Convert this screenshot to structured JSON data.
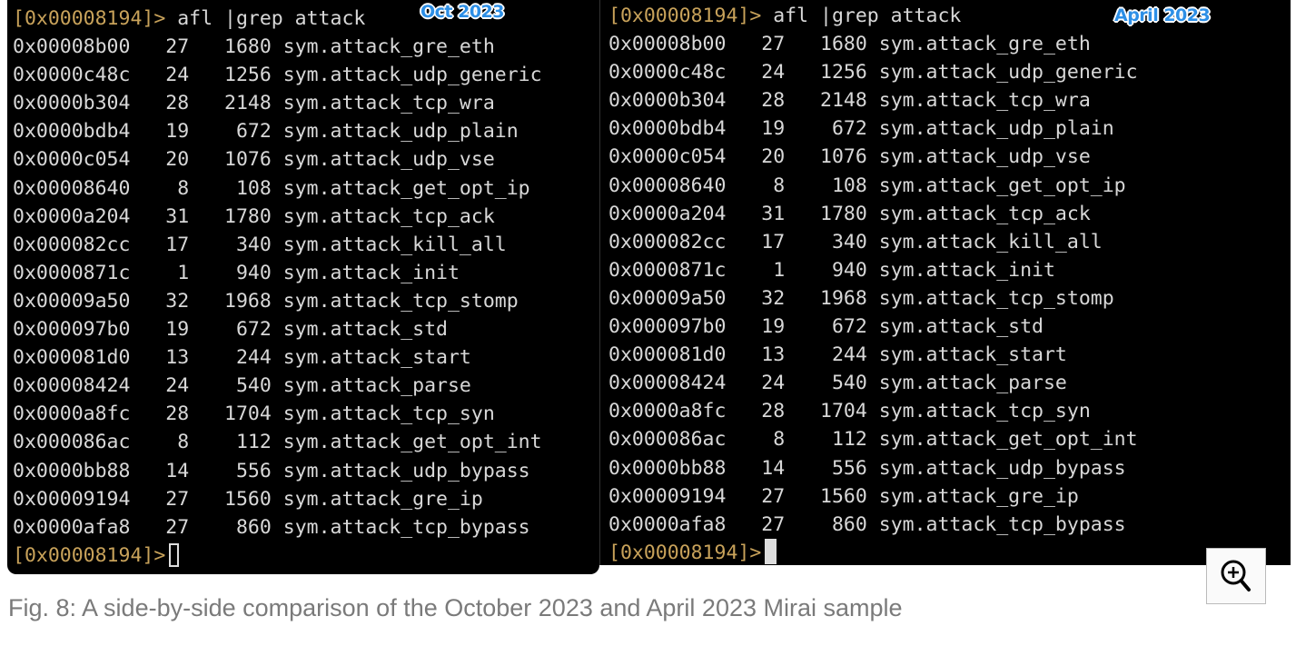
{
  "left_panel": {
    "label": "Oct 2023",
    "prompt": "[0x00008194]>",
    "command": " afl |grep attack",
    "rows": [
      [
        "0x00008b00",
        "27",
        "1680",
        "sym.attack_gre_eth"
      ],
      [
        "0x0000c48c",
        "24",
        "1256",
        "sym.attack_udp_generic"
      ],
      [
        "0x0000b304",
        "28",
        "2148",
        "sym.attack_tcp_wra"
      ],
      [
        "0x0000bdb4",
        "19",
        "672",
        "sym.attack_udp_plain"
      ],
      [
        "0x0000c054",
        "20",
        "1076",
        "sym.attack_udp_vse"
      ],
      [
        "0x00008640",
        "8",
        "108",
        "sym.attack_get_opt_ip"
      ],
      [
        "0x0000a204",
        "31",
        "1780",
        "sym.attack_tcp_ack"
      ],
      [
        "0x000082cc",
        "17",
        "340",
        "sym.attack_kill_all"
      ],
      [
        "0x0000871c",
        "1",
        "940",
        "sym.attack_init"
      ],
      [
        "0x00009a50",
        "32",
        "1968",
        "sym.attack_tcp_stomp"
      ],
      [
        "0x000097b0",
        "19",
        "672",
        "sym.attack_std"
      ],
      [
        "0x000081d0",
        "13",
        "244",
        "sym.attack_start"
      ],
      [
        "0x00008424",
        "24",
        "540",
        "sym.attack_parse"
      ],
      [
        "0x0000a8fc",
        "28",
        "1704",
        "sym.attack_tcp_syn"
      ],
      [
        "0x000086ac",
        "8",
        "112",
        "sym.attack_get_opt_int"
      ],
      [
        "0x0000bb88",
        "14",
        "556",
        "sym.attack_udp_bypass"
      ],
      [
        "0x00009194",
        "27",
        "1560",
        "sym.attack_gre_ip"
      ],
      [
        "0x0000afa8",
        "27",
        "860",
        "sym.attack_tcp_bypass"
      ]
    ]
  },
  "right_panel": {
    "label": "April 2023",
    "prompt": "[0x00008194]>",
    "command": " afl |grep attack",
    "rows": [
      [
        "0x00008b00",
        "27",
        "1680",
        "sym.attack_gre_eth"
      ],
      [
        "0x0000c48c",
        "24",
        "1256",
        "sym.attack_udp_generic"
      ],
      [
        "0x0000b304",
        "28",
        "2148",
        "sym.attack_tcp_wra"
      ],
      [
        "0x0000bdb4",
        "19",
        "672",
        "sym.attack_udp_plain"
      ],
      [
        "0x0000c054",
        "20",
        "1076",
        "sym.attack_udp_vse"
      ],
      [
        "0x00008640",
        "8",
        "108",
        "sym.attack_get_opt_ip"
      ],
      [
        "0x0000a204",
        "31",
        "1780",
        "sym.attack_tcp_ack"
      ],
      [
        "0x000082cc",
        "17",
        "340",
        "sym.attack_kill_all"
      ],
      [
        "0x0000871c",
        "1",
        "940",
        "sym.attack_init"
      ],
      [
        "0x00009a50",
        "32",
        "1968",
        "sym.attack_tcp_stomp"
      ],
      [
        "0x000097b0",
        "19",
        "672",
        "sym.attack_std"
      ],
      [
        "0x000081d0",
        "13",
        "244",
        "sym.attack_start"
      ],
      [
        "0x00008424",
        "24",
        "540",
        "sym.attack_parse"
      ],
      [
        "0x0000a8fc",
        "28",
        "1704",
        "sym.attack_tcp_syn"
      ],
      [
        "0x000086ac",
        "8",
        "112",
        "sym.attack_get_opt_int"
      ],
      [
        "0x0000bb88",
        "14",
        "556",
        "sym.attack_udp_bypass"
      ],
      [
        "0x00009194",
        "27",
        "1560",
        "sym.attack_gre_ip"
      ],
      [
        "0x0000afa8",
        "27",
        "860",
        "sym.attack_tcp_bypass"
      ]
    ]
  },
  "zoom_button": {
    "icon": "zoom-in-icon"
  },
  "caption": "Fig. 8: A side-by-side comparison of the October 2023 and April 2023 Mirai sample",
  "colors": {
    "prompt": "#c8a25a",
    "badge": "#2d8fe6",
    "terminal_bg": "#000000"
  }
}
